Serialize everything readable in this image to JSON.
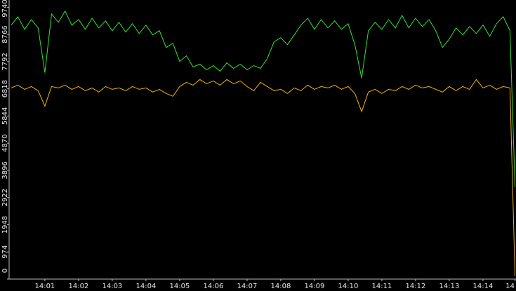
{
  "chart_data": {
    "type": "line",
    "x": [
      0,
      0.2,
      0.4,
      0.6,
      0.8,
      1.0,
      1.2,
      1.4,
      1.6,
      1.8,
      2.0,
      2.2,
      2.4,
      2.6,
      2.8,
      3.0,
      3.2,
      3.4,
      3.6,
      3.8,
      4.0,
      4.2,
      4.4,
      4.6,
      4.8,
      5.0,
      5.2,
      5.4,
      5.6,
      5.8,
      6.0,
      6.2,
      6.4,
      6.6,
      6.8,
      7.0,
      7.2,
      7.4,
      7.6,
      7.8,
      8.0,
      8.2,
      8.4,
      8.6,
      8.8,
      9.0,
      9.2,
      9.4,
      9.6,
      9.8,
      10.0,
      10.2,
      10.4,
      10.6,
      10.8,
      11.0,
      11.2,
      11.4,
      11.6,
      11.8,
      12.0,
      12.2,
      12.4,
      12.6,
      12.8,
      13.0,
      13.2,
      13.4,
      13.6,
      13.8,
      14.0,
      14.2,
      14.4,
      14.6,
      14.8,
      14.95
    ],
    "series": [
      {
        "color": "#2ee52e",
        "values": [
          9100,
          9400,
          8950,
          9300,
          9000,
          7400,
          9500,
          9200,
          9600,
          9100,
          9300,
          8950,
          9350,
          9000,
          9250,
          8900,
          9200,
          8850,
          9150,
          8800,
          9100,
          8750,
          8900,
          8300,
          8450,
          7800,
          8000,
          7600,
          7700,
          7500,
          7650,
          7450,
          7750,
          7550,
          7700,
          7500,
          7650,
          7550,
          7900,
          8500,
          8650,
          8400,
          8750,
          9100,
          9350,
          8950,
          9300,
          9000,
          9250,
          8950,
          9150,
          8400,
          7200,
          8900,
          9200,
          8950,
          9300,
          9000,
          9450,
          9000,
          9350,
          9050,
          9300,
          8900,
          8300,
          8600,
          9000,
          8750,
          9050,
          8800,
          9100,
          8700,
          9150,
          9400,
          8900,
          3300
        ]
      },
      {
        "color": "#f0b400",
        "values": [
          6850,
          6950,
          6800,
          6900,
          6750,
          6200,
          6900,
          6850,
          6950,
          6800,
          6900,
          6750,
          6850,
          6700,
          6900,
          6800,
          6850,
          6750,
          6900,
          6800,
          6850,
          6700,
          6800,
          6650,
          6550,
          6900,
          7050,
          6950,
          7150,
          7000,
          7100,
          6950,
          7150,
          7000,
          7100,
          6900,
          6750,
          7050,
          6900,
          6750,
          6800,
          6650,
          6850,
          6750,
          6950,
          6800,
          6900,
          6850,
          6950,
          6800,
          6900,
          6650,
          6000,
          6700,
          6800,
          6650,
          6800,
          6750,
          6900,
          6800,
          6950,
          6850,
          6900,
          6800,
          6700,
          6900,
          6750,
          6900,
          6800,
          7150,
          6850,
          6950,
          6800,
          6900,
          6850,
          100
        ]
      }
    ],
    "xlim": [
      -0.06,
      14.98
    ],
    "xticks": [
      {
        "value": 1,
        "label": "14:01"
      },
      {
        "value": 2,
        "label": "14:02"
      },
      {
        "value": 3,
        "label": "14:03"
      },
      {
        "value": 4,
        "label": "14:04"
      },
      {
        "value": 5,
        "label": "14:05"
      },
      {
        "value": 6,
        "label": "14:06"
      },
      {
        "value": 7,
        "label": "14:07"
      },
      {
        "value": 8,
        "label": "14:08"
      },
      {
        "value": 9,
        "label": "14:09"
      },
      {
        "value": 10,
        "label": "14:10"
      },
      {
        "value": 11,
        "label": "14:11"
      },
      {
        "value": 12,
        "label": "14:12"
      },
      {
        "value": 13,
        "label": "14:13"
      },
      {
        "value": 14,
        "label": "14:14"
      },
      {
        "value": 14.95,
        "label": "14"
      }
    ],
    "ylim": [
      0,
      10000
    ],
    "yticks": [
      0,
      974,
      1948,
      2922,
      3896,
      4870,
      5844,
      6818,
      7792,
      8766,
      9740
    ]
  }
}
